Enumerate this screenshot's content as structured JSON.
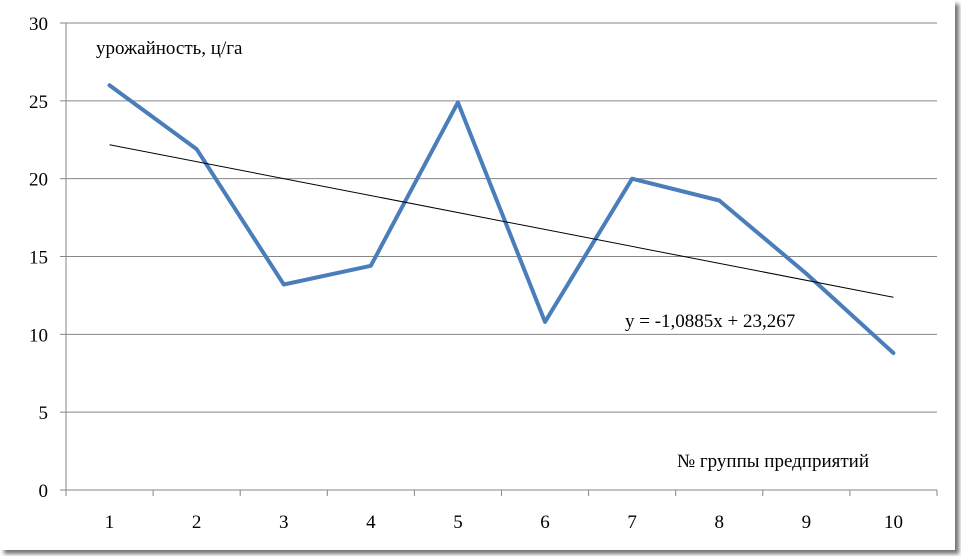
{
  "chart_data": {
    "type": "line",
    "ylabel": "урожайность, ц/га",
    "xlabel": "№ группы предприятий",
    "categories": [
      "1",
      "2",
      "3",
      "4",
      "5",
      "6",
      "7",
      "8",
      "9",
      "10"
    ],
    "series": [
      {
        "values": [
          26,
          21.9,
          13.2,
          14.4,
          24.9,
          10.8,
          20,
          18.6,
          13.9,
          8.8
        ],
        "color": "#4a7ebb"
      }
    ],
    "trendline": {
      "equation": "y = -1,0885x + 23,267",
      "slope": -1.0885,
      "intercept": 23.267,
      "color": "#000000"
    },
    "ylim": [
      0,
      30
    ],
    "yticks": [
      "0",
      "5",
      "10",
      "15",
      "20",
      "25",
      "30"
    ],
    "grid": true
  }
}
